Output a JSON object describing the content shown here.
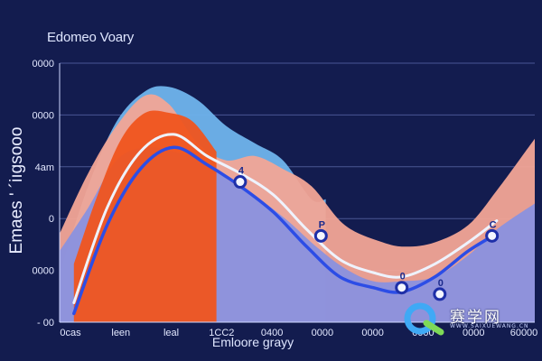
{
  "chart_data": {
    "type": "area",
    "title": "Edomeo Voary",
    "xlabel": "Emloore grayy",
    "ylabel": "Emaes ' ´iıgsooo",
    "xlim": [
      0,
      10
    ],
    "ylim": [
      -0.75,
      5.25
    ],
    "ytick_labels": [
      "0000",
      "0000",
      "4am",
      "0",
      "0000",
      "- 00"
    ],
    "xtick_labels": [
      "0cas",
      "leen",
      "leal",
      "1CC2",
      "0400",
      "0000",
      "0000",
      "0000",
      "0000",
      "60000"
    ],
    "grid": true,
    "background": "#131c4f",
    "series": [
      {
        "color": "#6fb4ec",
        "x": [
          0,
          0.6,
          1.2,
          1.8,
          2.3,
          2.9,
          3.5,
          4.1,
          4.7,
          5.3,
          5.6
        ],
        "values": [
          0.4,
          2.4,
          3.9,
          4.6,
          4.7,
          4.4,
          3.8,
          3.4,
          3.0,
          2.1,
          2.1
        ]
      },
      {
        "color": "#f2a596",
        "x": [
          0,
          0.6,
          1.2,
          1.8,
          2.3,
          2.9,
          3.5,
          4.1,
          4.7,
          5.3,
          6.0,
          6.8,
          7.3,
          7.9,
          8.6,
          9.2,
          9.8,
          10
        ],
        "values": [
          1.3,
          2.7,
          3.8,
          4.5,
          4.3,
          3.4,
          3.0,
          3.1,
          2.8,
          2.4,
          1.5,
          1.1,
          1.0,
          1.1,
          1.5,
          2.3,
          3.2,
          3.5
        ]
      },
      {
        "color": "#7f8fe8",
        "x": [
          0,
          0.6,
          1.2,
          1.8,
          2.4,
          3.0,
          3.6,
          4.2,
          4.8,
          5.4,
          6.0,
          6.6,
          7.2,
          7.9,
          8.6,
          9.2,
          10
        ],
        "values": [
          0.9,
          1.9,
          3.0,
          3.3,
          3.2,
          3.0,
          2.5,
          2.1,
          1.6,
          1.0,
          0.5,
          0.2,
          0.2,
          0.3,
          0.8,
          1.4,
          2.0
        ]
      },
      {
        "color": "#f0541e",
        "x": [
          0.3,
          0.8,
          1.3,
          1.8,
          2.3,
          2.8,
          3.3
        ],
        "values": [
          0.6,
          2.2,
          3.5,
          4.1,
          4.1,
          3.9,
          3.2
        ]
      }
    ],
    "lines": [
      {
        "color": "#eef3ff",
        "x": [
          0.3,
          1.0,
          1.7,
          2.4,
          3.1,
          3.8,
          4.5,
          5.2,
          5.9,
          6.6,
          7.2,
          7.9,
          8.6,
          9.2
        ],
        "values": [
          -0.3,
          1.9,
          3.2,
          3.6,
          3.1,
          2.7,
          2.2,
          1.4,
          0.7,
          0.4,
          0.3,
          0.6,
          1.1,
          1.6
        ]
      },
      {
        "color": "#2c4de6",
        "x": [
          0.3,
          1.0,
          1.7,
          2.4,
          3.1,
          3.8,
          4.5,
          5.2,
          5.9,
          6.6,
          7.2,
          7.9,
          8.6,
          9.2
        ],
        "values": [
          -0.55,
          1.5,
          2.8,
          3.3,
          2.9,
          2.4,
          1.8,
          1.0,
          0.3,
          0.05,
          -0.05,
          0.3,
          0.9,
          1.3
        ]
      }
    ],
    "markers": [
      {
        "x": 3.8,
        "y": 2.5,
        "label": "4"
      },
      {
        "x": 5.5,
        "y": 1.25,
        "label": "P"
      },
      {
        "x": 7.2,
        "y": 0.05,
        "label": "0"
      },
      {
        "x": 8.0,
        "y": -0.1,
        "label": "0"
      },
      {
        "x": 9.1,
        "y": 1.25,
        "label": "C"
      }
    ]
  },
  "watermark": {
    "text": "赛学网",
    "sub": "WWW.SAIXUEWANG.CN"
  }
}
